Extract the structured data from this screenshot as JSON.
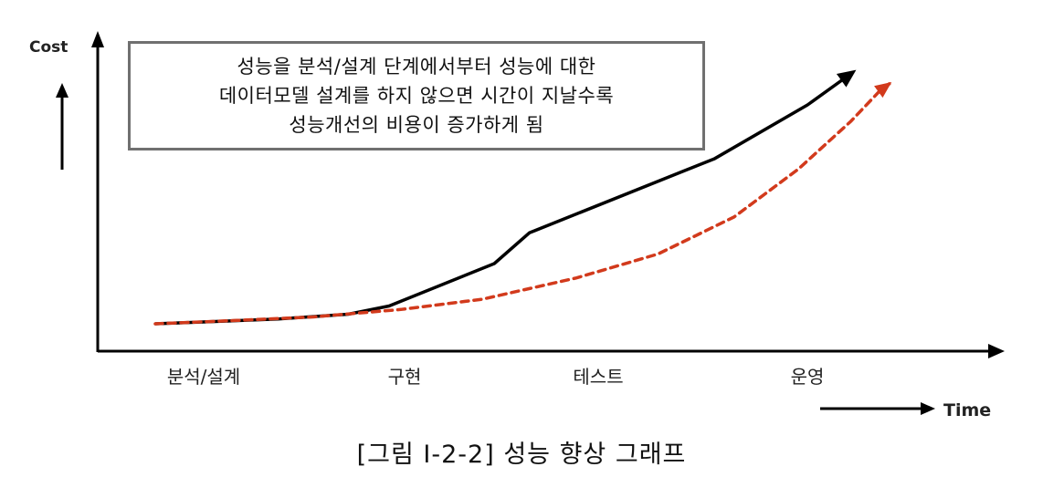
{
  "chart_data": {
    "type": "line",
    "ylabel": "Cost",
    "xlabel": "Time",
    "categories": [
      "분석/설계",
      "구현",
      "테스트",
      "운영"
    ],
    "series": [
      {
        "style": "solid",
        "color": "#000000",
        "points": [
          [
            0,
            4
          ],
          [
            1.05,
            11
          ],
          [
            1.65,
            18
          ],
          [
            2.0,
            30
          ],
          [
            2.9,
            92
          ],
          [
            3.2,
            137
          ],
          [
            4.53,
            228
          ],
          [
            4.78,
            245
          ],
          [
            5.58,
            324
          ],
          [
            5.97,
            372
          ]
        ]
      },
      {
        "style": "dashed",
        "color": "#d23a1c",
        "points": [
          [
            0,
            4
          ],
          [
            0.7,
            9
          ],
          [
            1.35,
            14
          ],
          [
            2.1,
            25
          ],
          [
            2.8,
            40
          ],
          [
            3.6,
            71
          ],
          [
            4.3,
            106
          ],
          [
            4.95,
            160
          ],
          [
            5.5,
            230
          ],
          [
            5.95,
            300
          ],
          [
            6.2,
            345
          ],
          [
            6.28,
            355
          ]
        ]
      }
    ],
    "grid": false,
    "legend": "none"
  },
  "callout": {
    "lines": [
      "성능을 분석/설계 단계에서부터 성능에 대한",
      "데이터모델 설계를 하지 않으면 시간이 지날수록",
      "성능개선의 비용이 증가하게 됨"
    ]
  },
  "caption": "[그림 Ⅰ-2-2] 성능 향상 그래프"
}
